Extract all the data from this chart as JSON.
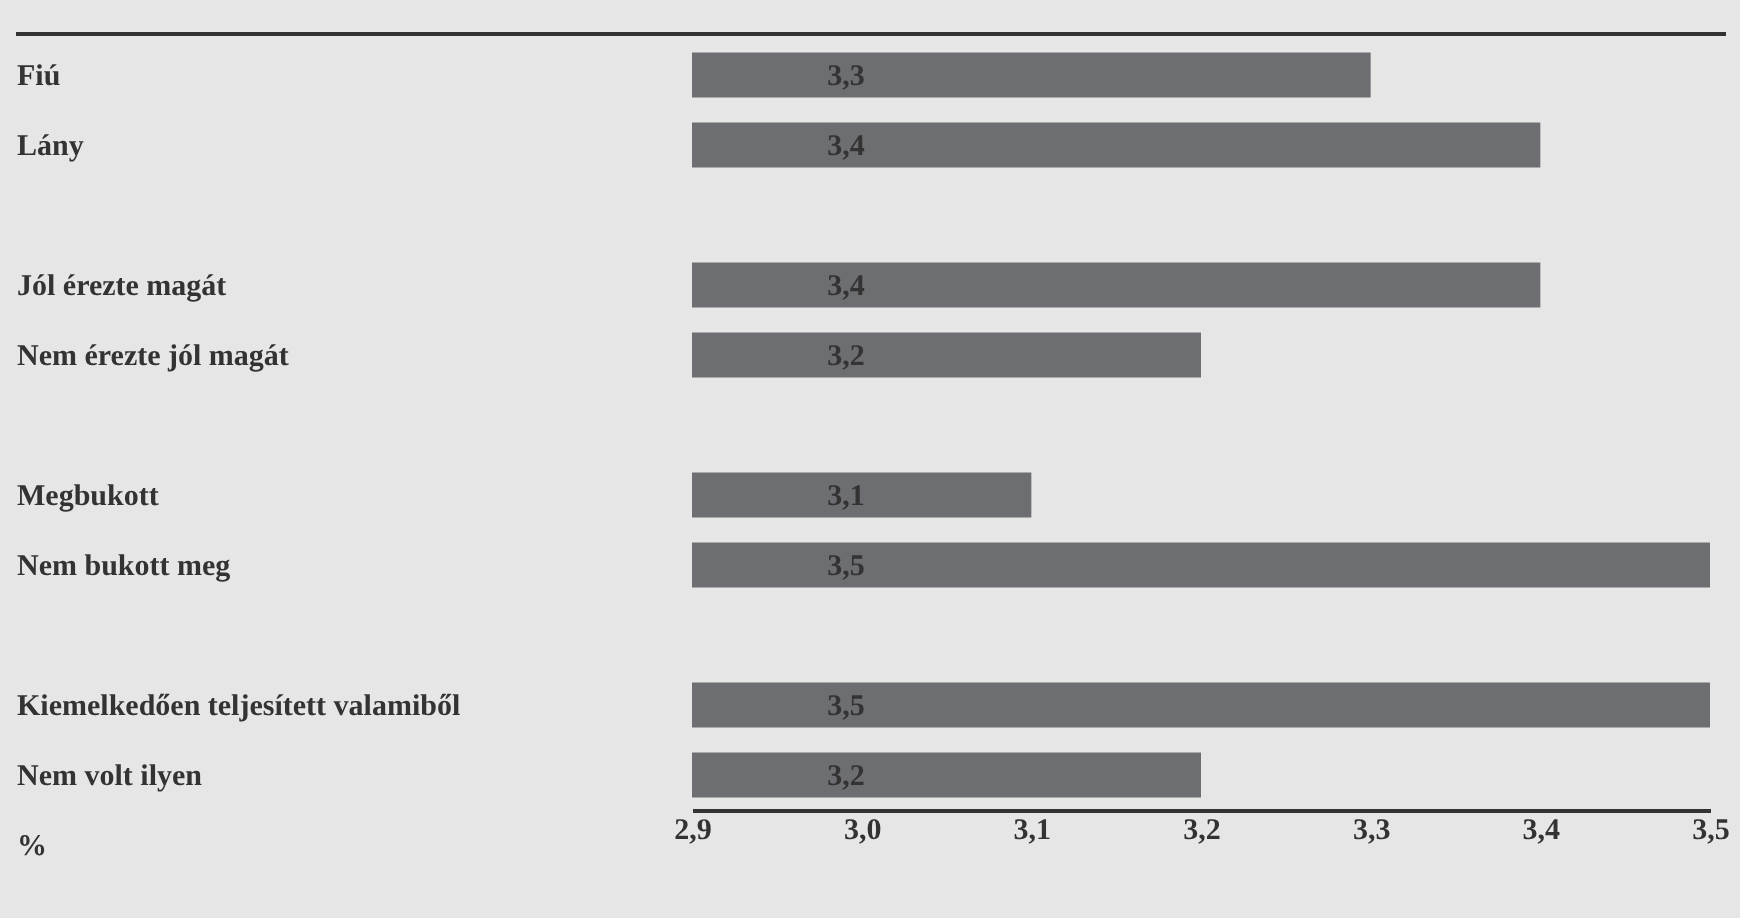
{
  "chart_data": {
    "type": "bar",
    "orientation": "horizontal",
    "xlabel": "%",
    "categories": [
      "Fiú",
      "Lány",
      null,
      "Jól érezte magát",
      "Nem érezte jól magát",
      null,
      "Megbukott",
      "Nem bukott meg",
      null,
      "Kiemelkedően teljesített valamiből",
      "Nem volt ilyen"
    ],
    "values": [
      3.3,
      3.4,
      null,
      3.4,
      3.2,
      null,
      3.1,
      3.5,
      null,
      3.5,
      3.2
    ],
    "value_labels": [
      "3,3",
      "3,4",
      null,
      "3,4",
      "3,2",
      null,
      "3,1",
      "3,5",
      null,
      "3,5",
      "3,2"
    ],
    "color": "#6d6e71",
    "xlim": [
      2.9,
      3.5
    ],
    "xticks": [
      {
        "value": 2.9,
        "label": "2,9"
      },
      {
        "value": 3.0,
        "label": "3,0"
      },
      {
        "value": 3.1,
        "label": "3,1"
      },
      {
        "value": 3.2,
        "label": "3,2"
      },
      {
        "value": 3.3,
        "label": "3,3"
      },
      {
        "value": 3.4,
        "label": "3,4"
      },
      {
        "value": 3.5,
        "label": "3,5"
      }
    ],
    "grid": false
  }
}
